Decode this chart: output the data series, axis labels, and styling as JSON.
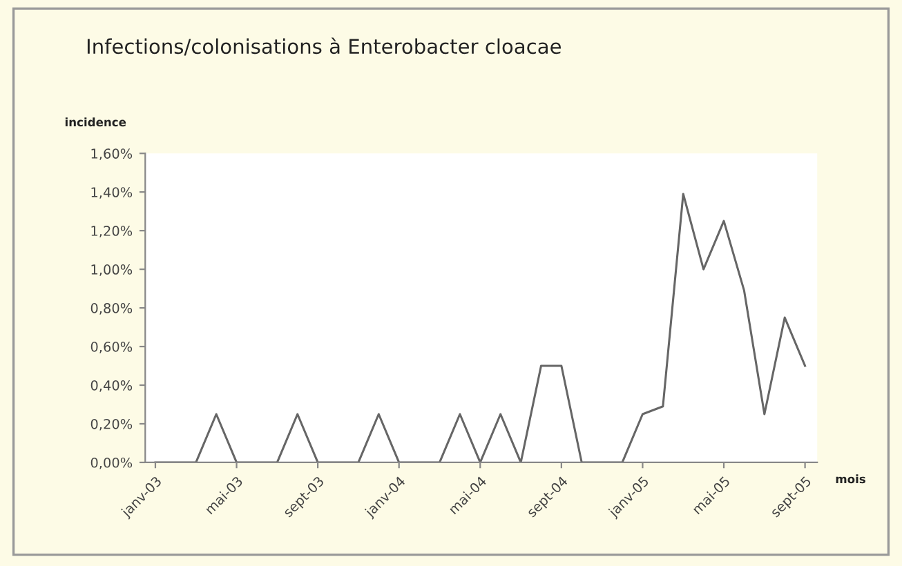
{
  "chart_data": {
    "type": "line",
    "title": "Infections/colonisations à Enterobacter cloacae",
    "ylabel": "incidence",
    "xlabel": "mois",
    "categories": [
      "janv-03",
      null,
      null,
      null,
      "mai-03",
      null,
      null,
      null,
      "sept-03",
      null,
      null,
      null,
      "janv-04",
      null,
      null,
      null,
      "mai-04",
      null,
      null,
      null,
      "sept-04",
      null,
      null,
      null,
      "janv-05",
      null,
      null,
      null,
      "mai-05",
      null,
      null,
      null,
      "sept-05"
    ],
    "series": [
      {
        "color": "#666666",
        "values": [
          0,
          0,
          0,
          0.25,
          0,
          0,
          0,
          0.25,
          0,
          0,
          0,
          0.25,
          0,
          0,
          0,
          0.25,
          0,
          0.25,
          0,
          0.5,
          0.5,
          0,
          0,
          0,
          0.25,
          0.29,
          1.39,
          1.0,
          1.25,
          0.89,
          0.25,
          0.75,
          0.5
        ]
      }
    ],
    "ylim": [
      0,
      1.6
    ],
    "yticks": [
      {
        "value": 0,
        "label": "0,00%"
      },
      {
        "value": 0.2,
        "label": "0,20%"
      },
      {
        "value": 0.4,
        "label": "0,40%"
      },
      {
        "value": 0.6,
        "label": "0,60%"
      },
      {
        "value": 0.8,
        "label": "0,80%"
      },
      {
        "value": 1.0,
        "label": "1,00%"
      },
      {
        "value": 1.2,
        "label": "1,20%"
      },
      {
        "value": 1.4,
        "label": "1,40%"
      },
      {
        "value": 1.6,
        "label": "1,60%"
      }
    ],
    "grid": false,
    "marker": "none",
    "line_style": "solid"
  }
}
